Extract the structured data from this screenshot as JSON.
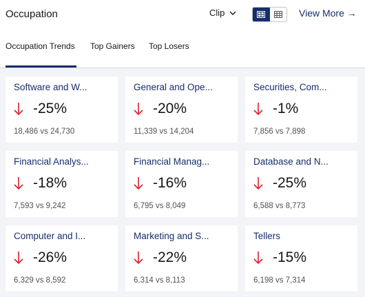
{
  "header": {
    "title": "Occupation",
    "clip_label": "Clip",
    "view_more_label": "View More →",
    "view_toggle": [
      "grid-view",
      "table-view"
    ]
  },
  "tabs": [
    {
      "label": "Occupation Trends",
      "active": true
    },
    {
      "label": "Top Gainers",
      "active": false
    },
    {
      "label": "Top Losers",
      "active": false
    }
  ],
  "colors": {
    "accent": "#162d6b",
    "decline": "#da1e28",
    "background": "#f2f4f8"
  },
  "cards": [
    {
      "name": "Software and W...",
      "change": "-25%",
      "compare": "18,486 vs 24,730",
      "direction": "down"
    },
    {
      "name": "General and Ope...",
      "change": "-20%",
      "compare": "11,339 vs 14,204",
      "direction": "down"
    },
    {
      "name": "Securities, Com...",
      "change": "-1%",
      "compare": "7,856 vs 7,898",
      "direction": "down"
    },
    {
      "name": "Financial Analys...",
      "change": "-18%",
      "compare": "7,593 vs 9,242",
      "direction": "down"
    },
    {
      "name": "Financial Manag...",
      "change": "-16%",
      "compare": "6,795 vs 8,049",
      "direction": "down"
    },
    {
      "name": "Database and N...",
      "change": "-25%",
      "compare": "6,588 vs 8,773",
      "direction": "down"
    },
    {
      "name": "Computer and I...",
      "change": "-26%",
      "compare": "6,329 vs 8,592",
      "direction": "down"
    },
    {
      "name": "Marketing and S...",
      "change": "-22%",
      "compare": "6,314 vs 8,113",
      "direction": "down"
    },
    {
      "name": "Tellers",
      "change": "-15%",
      "compare": "6,198 vs 7,314",
      "direction": "down"
    }
  ]
}
